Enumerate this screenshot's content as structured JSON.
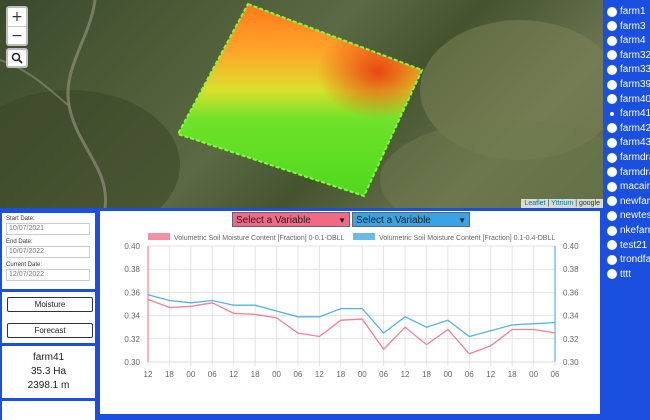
{
  "map": {
    "zoom_in_label": "+",
    "zoom_out_label": "−",
    "attribution": {
      "leaflet": "Leaflet",
      "sep1": " | ",
      "provider": "Yttrium",
      "sep2": " | ",
      "google": "google"
    }
  },
  "farms": {
    "selected": "farm41",
    "items": [
      "farm1",
      "farm3",
      "farm4",
      "farm32",
      "farm33",
      "farm39",
      "farm40",
      "farm41",
      "farm42",
      "farm43",
      "farmdra",
      "farmdra",
      "macaira",
      "newfarm",
      "newtest",
      "nkefarn",
      "test21",
      "trondfa",
      "tttt"
    ]
  },
  "dates": {
    "start_label": "Start Date:",
    "start_value": "10/07/2021",
    "end_label": "End Date:",
    "end_value": "10/07/2022",
    "current_label": "Current Date:",
    "current_value": "12/07/2022"
  },
  "buttons": {
    "moisture": "Moisture",
    "forecast": "Forecast"
  },
  "farm_info": {
    "name": "farm41",
    "area": "35.3 Ha",
    "perimeter": "2398.1 m"
  },
  "selectors": [
    {
      "label": "Select a Variable",
      "color": "#f06a85"
    },
    {
      "label": "Select a Variable",
      "color": "#3aa3e3"
    }
  ],
  "colors": {
    "series1": "#f06a85",
    "series2": "#3aa3e3",
    "background": "#1a4fe0"
  },
  "chart_data": {
    "type": "line",
    "categories": [
      "12",
      "18",
      "00",
      "06",
      "12",
      "18",
      "00",
      "06",
      "12",
      "18",
      "00",
      "06",
      "12",
      "18",
      "00",
      "06",
      "12",
      "18",
      "00",
      "06"
    ],
    "ylim": [
      0.3,
      0.4
    ],
    "yticks": [
      "0.30",
      "0.32",
      "0.34",
      "0.36",
      "0.38",
      "0.40"
    ],
    "grid": true,
    "legend": "top",
    "series": [
      {
        "name": "Volumetric Soil Moisture Content [Fraction] 0-0.1-DBLL",
        "color": "#f06a85",
        "values": [
          0.354,
          0.347,
          0.348,
          0.351,
          0.342,
          0.341,
          0.338,
          0.325,
          0.322,
          0.336,
          0.337,
          0.311,
          0.33,
          0.315,
          0.328,
          0.307,
          0.314,
          0.328,
          0.328,
          0.325
        ]
      },
      {
        "name": "Volumetric Soil Moisture Content [Fraction] 0.1-0.4-DBLL",
        "color": "#3aa3e3",
        "values": [
          0.358,
          0.353,
          0.351,
          0.353,
          0.349,
          0.349,
          0.344,
          0.339,
          0.339,
          0.346,
          0.346,
          0.325,
          0.339,
          0.33,
          0.336,
          0.322,
          0.327,
          0.332,
          0.333,
          0.334
        ]
      }
    ]
  }
}
